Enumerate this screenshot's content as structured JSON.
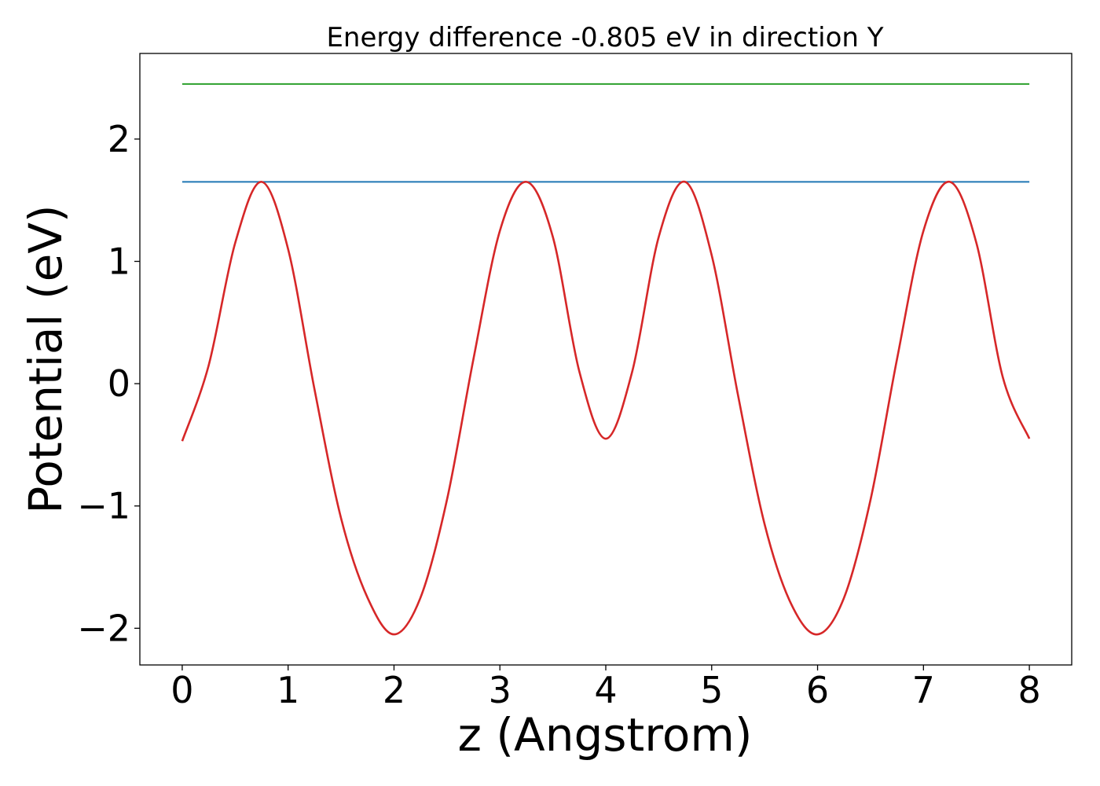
{
  "chart_data": {
    "type": "line",
    "title": "Energy difference -0.805 eV in direction Y",
    "xlabel": "z (Angstrom)",
    "ylabel": "Potential (eV)",
    "xlim": [
      -0.4,
      8.4
    ],
    "ylim": [
      -2.3,
      2.7
    ],
    "xticks": [
      0,
      1,
      2,
      3,
      4,
      5,
      6,
      7,
      8
    ],
    "xtick_labels": [
      "0",
      "1",
      "2",
      "3",
      "4",
      "5",
      "6",
      "7",
      "8"
    ],
    "yticks": [
      -2,
      -1,
      0,
      1,
      2
    ],
    "ytick_labels": [
      "−2",
      "−1",
      "0",
      "1",
      "2"
    ],
    "grid": false,
    "series": [
      {
        "color": "#2ca02c",
        "x": [
          0,
          8
        ],
        "y": [
          2.45,
          2.45
        ]
      },
      {
        "color": "#1f77b4",
        "x": [
          0,
          8
        ],
        "y": [
          1.65,
          1.65
        ]
      },
      {
        "color": "#d62728",
        "x": [
          0,
          0.25,
          0.5,
          0.75,
          1.0,
          1.25,
          1.5,
          1.75,
          2.0,
          2.25,
          2.5,
          2.75,
          3.0,
          3.25,
          3.5,
          3.75,
          4.0,
          4.25,
          4.5,
          4.75,
          5.0,
          5.25,
          5.5,
          5.75,
          6.0,
          6.25,
          6.5,
          6.75,
          7.0,
          7.25,
          7.5,
          7.75,
          8.0
        ],
        "y": [
          -0.47,
          0.15,
          1.15,
          1.65,
          1.1,
          -0.05,
          -1.1,
          -1.75,
          -2.05,
          -1.75,
          -0.95,
          0.2,
          1.25,
          1.65,
          1.2,
          0.1,
          -0.45,
          0.1,
          1.2,
          1.65,
          1.05,
          -0.1,
          -1.15,
          -1.8,
          -2.05,
          -1.75,
          -0.95,
          0.2,
          1.25,
          1.65,
          1.15,
          0.05,
          -0.45
        ]
      }
    ]
  }
}
